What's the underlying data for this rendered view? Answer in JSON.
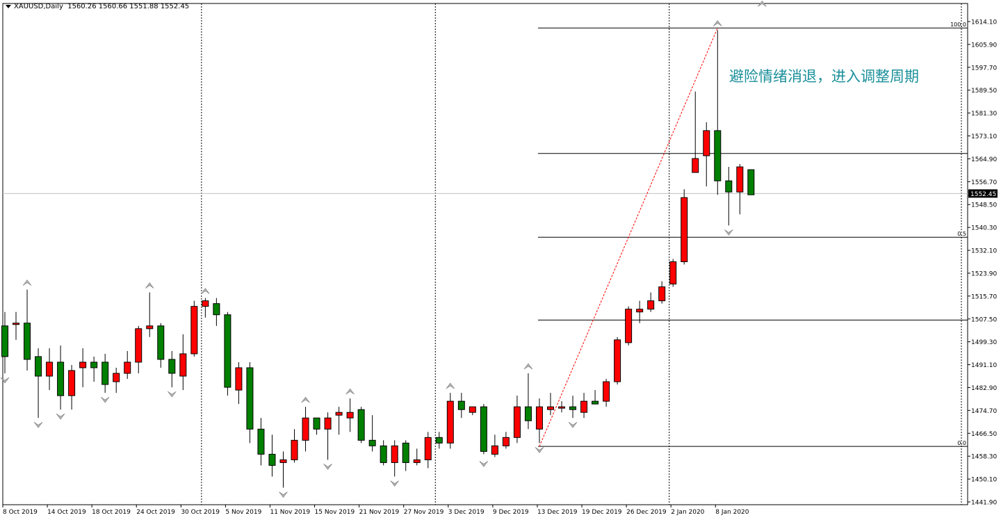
{
  "header": {
    "symbol": "XAUUSD,Daily",
    "ohlc": "1560.26 1560.66 1551.88 1552.45"
  },
  "annotation": {
    "text": "避险情绪消退，进入调整周期"
  },
  "colors": {
    "bull": "#ff0000",
    "bear": "#008000",
    "annotation": "#1a8f9a",
    "fibo_line": "#000000",
    "trend_line": "#ff0000"
  },
  "chart_data": {
    "type": "candlestick",
    "symbol": "XAUUSD",
    "timeframe": "Daily",
    "ylim": [
      1441.9,
      1618.0
    ],
    "y_ticks": [
      "1614.10",
      "1605.90",
      "1597.70",
      "1589.50",
      "1581.30",
      "1573.10",
      "1564.90",
      "1556.70",
      "1548.50",
      "1540.30",
      "1532.10",
      "1523.90",
      "1515.70",
      "1507.50",
      "1499.30",
      "1491.10",
      "1482.90",
      "1474.70",
      "1466.50",
      "1458.30",
      "1450.10",
      "1441.90"
    ],
    "x_ticks": [
      {
        "label": "8 Oct 2019",
        "index": 0
      },
      {
        "label": "14 Oct 2019",
        "index": 4
      },
      {
        "label": "18 Oct 2019",
        "index": 8
      },
      {
        "label": "24 Oct 2019",
        "index": 12
      },
      {
        "label": "30 Oct 2019",
        "index": 16
      },
      {
        "label": "5 Nov 2019",
        "index": 20
      },
      {
        "label": "11 Nov 2019",
        "index": 24
      },
      {
        "label": "15 Nov 2019",
        "index": 28
      },
      {
        "label": "21 Nov 2019",
        "index": 32
      },
      {
        "label": "27 Nov 2019",
        "index": 36
      },
      {
        "label": "3 Dec 2019",
        "index": 40
      },
      {
        "label": "9 Dec 2019",
        "index": 44
      },
      {
        "label": "13 Dec 2019",
        "index": 48
      },
      {
        "label": "19 Dec 2019",
        "index": 52
      },
      {
        "label": "26 Dec 2019",
        "index": 56
      },
      {
        "label": "2 Jan 2020",
        "index": 60
      },
      {
        "label": "8 Jan 2020",
        "index": 64
      }
    ],
    "period_separators": [
      18,
      39,
      60
    ],
    "current_price": {
      "value": 1552.45,
      "label": "1552.45"
    },
    "candles": [
      {
        "o": 1505,
        "h": 1510,
        "l": 1488,
        "c": 1494
      },
      {
        "o": 1506,
        "h": 1510,
        "l": 1500,
        "c": 1506
      },
      {
        "o": 1506,
        "h": 1518,
        "l": 1489,
        "c": 1493
      },
      {
        "o": 1494,
        "h": 1497,
        "l": 1472,
        "c": 1487
      },
      {
        "o": 1487,
        "h": 1497,
        "l": 1482,
        "c": 1492
      },
      {
        "o": 1492,
        "h": 1498,
        "l": 1475,
        "c": 1480
      },
      {
        "o": 1480,
        "h": 1491,
        "l": 1475,
        "c": 1489
      },
      {
        "o": 1490,
        "h": 1497,
        "l": 1483,
        "c": 1492
      },
      {
        "o": 1492,
        "h": 1494,
        "l": 1485,
        "c": 1490
      },
      {
        "o": 1492,
        "h": 1495,
        "l": 1481,
        "c": 1484
      },
      {
        "o": 1485,
        "h": 1490,
        "l": 1481,
        "c": 1488
      },
      {
        "o": 1488,
        "h": 1496,
        "l": 1486,
        "c": 1492
      },
      {
        "o": 1492,
        "h": 1505,
        "l": 1488,
        "c": 1504
      },
      {
        "o": 1504,
        "h": 1517,
        "l": 1501,
        "c": 1505
      },
      {
        "o": 1505,
        "h": 1506,
        "l": 1490,
        "c": 1493
      },
      {
        "o": 1493,
        "h": 1496,
        "l": 1483,
        "c": 1488
      },
      {
        "o": 1487,
        "h": 1502,
        "l": 1482,
        "c": 1495
      },
      {
        "o": 1495,
        "h": 1514,
        "l": 1494,
        "c": 1512
      },
      {
        "o": 1512,
        "h": 1515,
        "l": 1508,
        "c": 1514
      },
      {
        "o": 1513,
        "h": 1515,
        "l": 1505,
        "c": 1509
      },
      {
        "o": 1509,
        "h": 1510,
        "l": 1480,
        "c": 1483
      },
      {
        "o": 1482,
        "h": 1492,
        "l": 1477,
        "c": 1490
      },
      {
        "o": 1490,
        "h": 1492,
        "l": 1463,
        "c": 1468
      },
      {
        "o": 1468,
        "h": 1472,
        "l": 1455,
        "c": 1459
      },
      {
        "o": 1459,
        "h": 1466,
        "l": 1451,
        "c": 1455
      },
      {
        "o": 1456,
        "h": 1460,
        "l": 1447,
        "c": 1457
      },
      {
        "o": 1457,
        "h": 1468,
        "l": 1456,
        "c": 1464
      },
      {
        "o": 1464,
        "h": 1476,
        "l": 1460,
        "c": 1472
      },
      {
        "o": 1472,
        "h": 1472,
        "l": 1466,
        "c": 1468
      },
      {
        "o": 1468,
        "h": 1474,
        "l": 1457,
        "c": 1472
      },
      {
        "o": 1473,
        "h": 1476,
        "l": 1466,
        "c": 1474
      },
      {
        "o": 1472,
        "h": 1479,
        "l": 1467,
        "c": 1474
      },
      {
        "o": 1475,
        "h": 1476,
        "l": 1463,
        "c": 1464
      },
      {
        "o": 1464,
        "h": 1473,
        "l": 1460,
        "c": 1462
      },
      {
        "o": 1462,
        "h": 1464,
        "l": 1455,
        "c": 1456
      },
      {
        "o": 1456,
        "h": 1464,
        "l": 1451,
        "c": 1462
      },
      {
        "o": 1463,
        "h": 1464,
        "l": 1453,
        "c": 1456
      },
      {
        "o": 1456,
        "h": 1461,
        "l": 1455,
        "c": 1457
      },
      {
        "o": 1457,
        "h": 1467,
        "l": 1454,
        "c": 1465
      },
      {
        "o": 1465,
        "h": 1467,
        "l": 1461,
        "c": 1463
      },
      {
        "o": 1463,
        "h": 1481,
        "l": 1461,
        "c": 1478
      },
      {
        "o": 1478,
        "h": 1481,
        "l": 1472,
        "c": 1475
      },
      {
        "o": 1474,
        "h": 1476,
        "l": 1473,
        "c": 1476
      },
      {
        "o": 1476,
        "h": 1477,
        "l": 1459,
        "c": 1460
      },
      {
        "o": 1459,
        "h": 1466,
        "l": 1458,
        "c": 1462
      },
      {
        "o": 1462,
        "h": 1467,
        "l": 1461,
        "c": 1465
      },
      {
        "o": 1465,
        "h": 1480,
        "l": 1463,
        "c": 1476
      },
      {
        "o": 1476,
        "h": 1488,
        "l": 1468,
        "c": 1471
      },
      {
        "o": 1468,
        "h": 1479,
        "l": 1463,
        "c": 1476
      },
      {
        "o": 1475,
        "h": 1481,
        "l": 1473,
        "c": 1476
      },
      {
        "o": 1476,
        "h": 1478,
        "l": 1474,
        "c": 1476
      },
      {
        "o": 1476,
        "h": 1480,
        "l": 1472,
        "c": 1475
      },
      {
        "o": 1474,
        "h": 1481,
        "l": 1472,
        "c": 1478
      },
      {
        "o": 1478,
        "h": 1482,
        "l": 1477,
        "c": 1477
      },
      {
        "o": 1478,
        "h": 1486,
        "l": 1476,
        "c": 1485
      },
      {
        "o": 1485,
        "h": 1501,
        "l": 1484,
        "c": 1500
      },
      {
        "o": 1499,
        "h": 1512,
        "l": 1498,
        "c": 1511
      },
      {
        "o": 1510,
        "h": 1514,
        "l": 1506,
        "c": 1511
      },
      {
        "o": 1511,
        "h": 1517,
        "l": 1510,
        "c": 1514
      },
      {
        "o": 1514,
        "h": 1521,
        "l": 1513,
        "c": 1519
      },
      {
        "o": 1520,
        "h": 1529,
        "l": 1519,
        "c": 1528
      },
      {
        "o": 1528,
        "h": 1554,
        "l": 1527,
        "c": 1551
      },
      {
        "o": 1560,
        "h": 1589,
        "l": 1560,
        "c": 1565
      },
      {
        "o": 1566,
        "h": 1578,
        "l": 1555,
        "c": 1575
      },
      {
        "o": 1575,
        "h": 1611,
        "l": 1552,
        "c": 1557
      },
      {
        "o": 1557,
        "h": 1562,
        "l": 1541,
        "c": 1553
      },
      {
        "o": 1553,
        "h": 1563,
        "l": 1545,
        "c": 1562
      },
      {
        "o": 1561,
        "h": 1561,
        "l": 1552,
        "c": 1552
      }
    ],
    "fibonacci": {
      "levels": [
        {
          "value": 1611.8,
          "label": "100.0"
        },
        {
          "value": 1566.8,
          "label": ""
        },
        {
          "value": 1536.8,
          "label": "0.5"
        },
        {
          "value": 1507.1,
          "label": ""
        },
        {
          "value": 1461.8,
          "label": "0.0"
        }
      ],
      "start_index": 48,
      "trend": {
        "from": {
          "index": 48,
          "price": 1461.8
        },
        "to": {
          "index": 64,
          "price": 1611.8
        }
      }
    },
    "fractals": {
      "up": [
        {
          "index": 2,
          "price": 1518
        },
        {
          "index": 13,
          "price": 1517
        },
        {
          "index": 18,
          "price": 1515
        },
        {
          "index": 27,
          "price": 1476
        },
        {
          "index": 31,
          "price": 1479
        },
        {
          "index": 40,
          "price": 1481
        },
        {
          "index": 47,
          "price": 1488
        },
        {
          "index": 64,
          "price": 1611
        },
        {
          "index": 68,
          "price": 1618
        }
      ],
      "down": [
        {
          "index": 0,
          "price": 1488
        },
        {
          "index": 3,
          "price": 1472
        },
        {
          "index": 5,
          "price": 1475
        },
        {
          "index": 9,
          "price": 1481
        },
        {
          "index": 15,
          "price": 1483
        },
        {
          "index": 25,
          "price": 1447
        },
        {
          "index": 29,
          "price": 1457
        },
        {
          "index": 35,
          "price": 1451
        },
        {
          "index": 43,
          "price": 1458
        },
        {
          "index": 48,
          "price": 1463
        },
        {
          "index": 51,
          "price": 1472
        },
        {
          "index": 65,
          "price": 1541
        }
      ]
    }
  }
}
